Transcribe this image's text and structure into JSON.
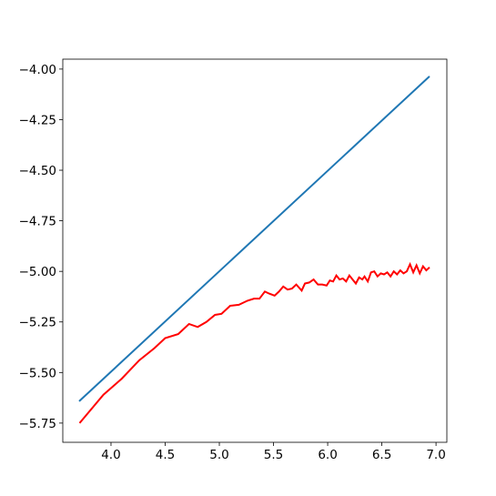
{
  "chart_data": {
    "type": "line",
    "xlim": [
      3.555,
      7.1
    ],
    "ylim": [
      -5.845,
      -3.951
    ],
    "xticks": [
      {
        "value": 4.0,
        "label": "4.0"
      },
      {
        "value": 4.5,
        "label": "4.5"
      },
      {
        "value": 5.0,
        "label": "5.0"
      },
      {
        "value": 5.5,
        "label": "5.5"
      },
      {
        "value": 6.0,
        "label": "6.0"
      },
      {
        "value": 6.5,
        "label": "6.5"
      },
      {
        "value": 7.0,
        "label": "7.0"
      }
    ],
    "yticks": [
      {
        "value": -4.0,
        "label": "−4.00"
      },
      {
        "value": -4.25,
        "label": "−4.25"
      },
      {
        "value": -4.5,
        "label": "−4.50"
      },
      {
        "value": -4.75,
        "label": "−4.75"
      },
      {
        "value": -5.0,
        "label": "−5.00"
      },
      {
        "value": -5.25,
        "label": "−5.25"
      },
      {
        "value": -5.5,
        "label": "−5.50"
      },
      {
        "value": -5.75,
        "label": "−5.75"
      }
    ],
    "series": [
      {
        "color": "#1f77b4",
        "x": [
          3.706,
          6.94
        ],
        "values": [
          -5.642,
          -4.036
        ]
      },
      {
        "color": "#ff0000",
        "x": [
          3.71,
          3.93,
          4.1,
          4.26,
          4.4,
          4.5,
          4.62,
          4.72,
          4.8,
          4.88,
          4.96,
          5.02,
          5.1,
          5.18,
          5.26,
          5.32,
          5.37,
          5.42,
          5.46,
          5.51,
          5.55,
          5.59,
          5.63,
          5.67,
          5.71,
          5.76,
          5.79,
          5.83,
          5.87,
          5.91,
          5.95,
          5.99,
          6.02,
          6.05,
          6.08,
          6.11,
          6.14,
          6.17,
          6.2,
          6.23,
          6.26,
          6.29,
          6.32,
          6.34,
          6.37,
          6.4,
          6.43,
          6.46,
          6.49,
          6.52,
          6.55,
          6.58,
          6.61,
          6.64,
          6.67,
          6.7,
          6.73,
          6.76,
          6.79,
          6.82,
          6.85,
          6.88,
          6.91,
          6.94
        ],
        "values": [
          -5.75,
          -5.61,
          -5.53,
          -5.44,
          -5.38,
          -5.33,
          -5.31,
          -5.26,
          -5.275,
          -5.25,
          -5.215,
          -5.21,
          -5.17,
          -5.165,
          -5.145,
          -5.135,
          -5.135,
          -5.1,
          -5.11,
          -5.12,
          -5.1,
          -5.075,
          -5.09,
          -5.085,
          -5.065,
          -5.095,
          -5.06,
          -5.055,
          -5.04,
          -5.065,
          -5.065,
          -5.07,
          -5.045,
          -5.05,
          -5.02,
          -5.04,
          -5.035,
          -5.05,
          -5.02,
          -5.04,
          -5.06,
          -5.03,
          -5.04,
          -5.025,
          -5.05,
          -5.005,
          -5.0,
          -5.025,
          -5.01,
          -5.015,
          -5.005,
          -5.025,
          -5.0,
          -5.015,
          -4.995,
          -5.01,
          -5.0,
          -4.965,
          -5.005,
          -4.97,
          -5.01,
          -4.975,
          -4.995,
          -4.98
        ]
      }
    ]
  }
}
